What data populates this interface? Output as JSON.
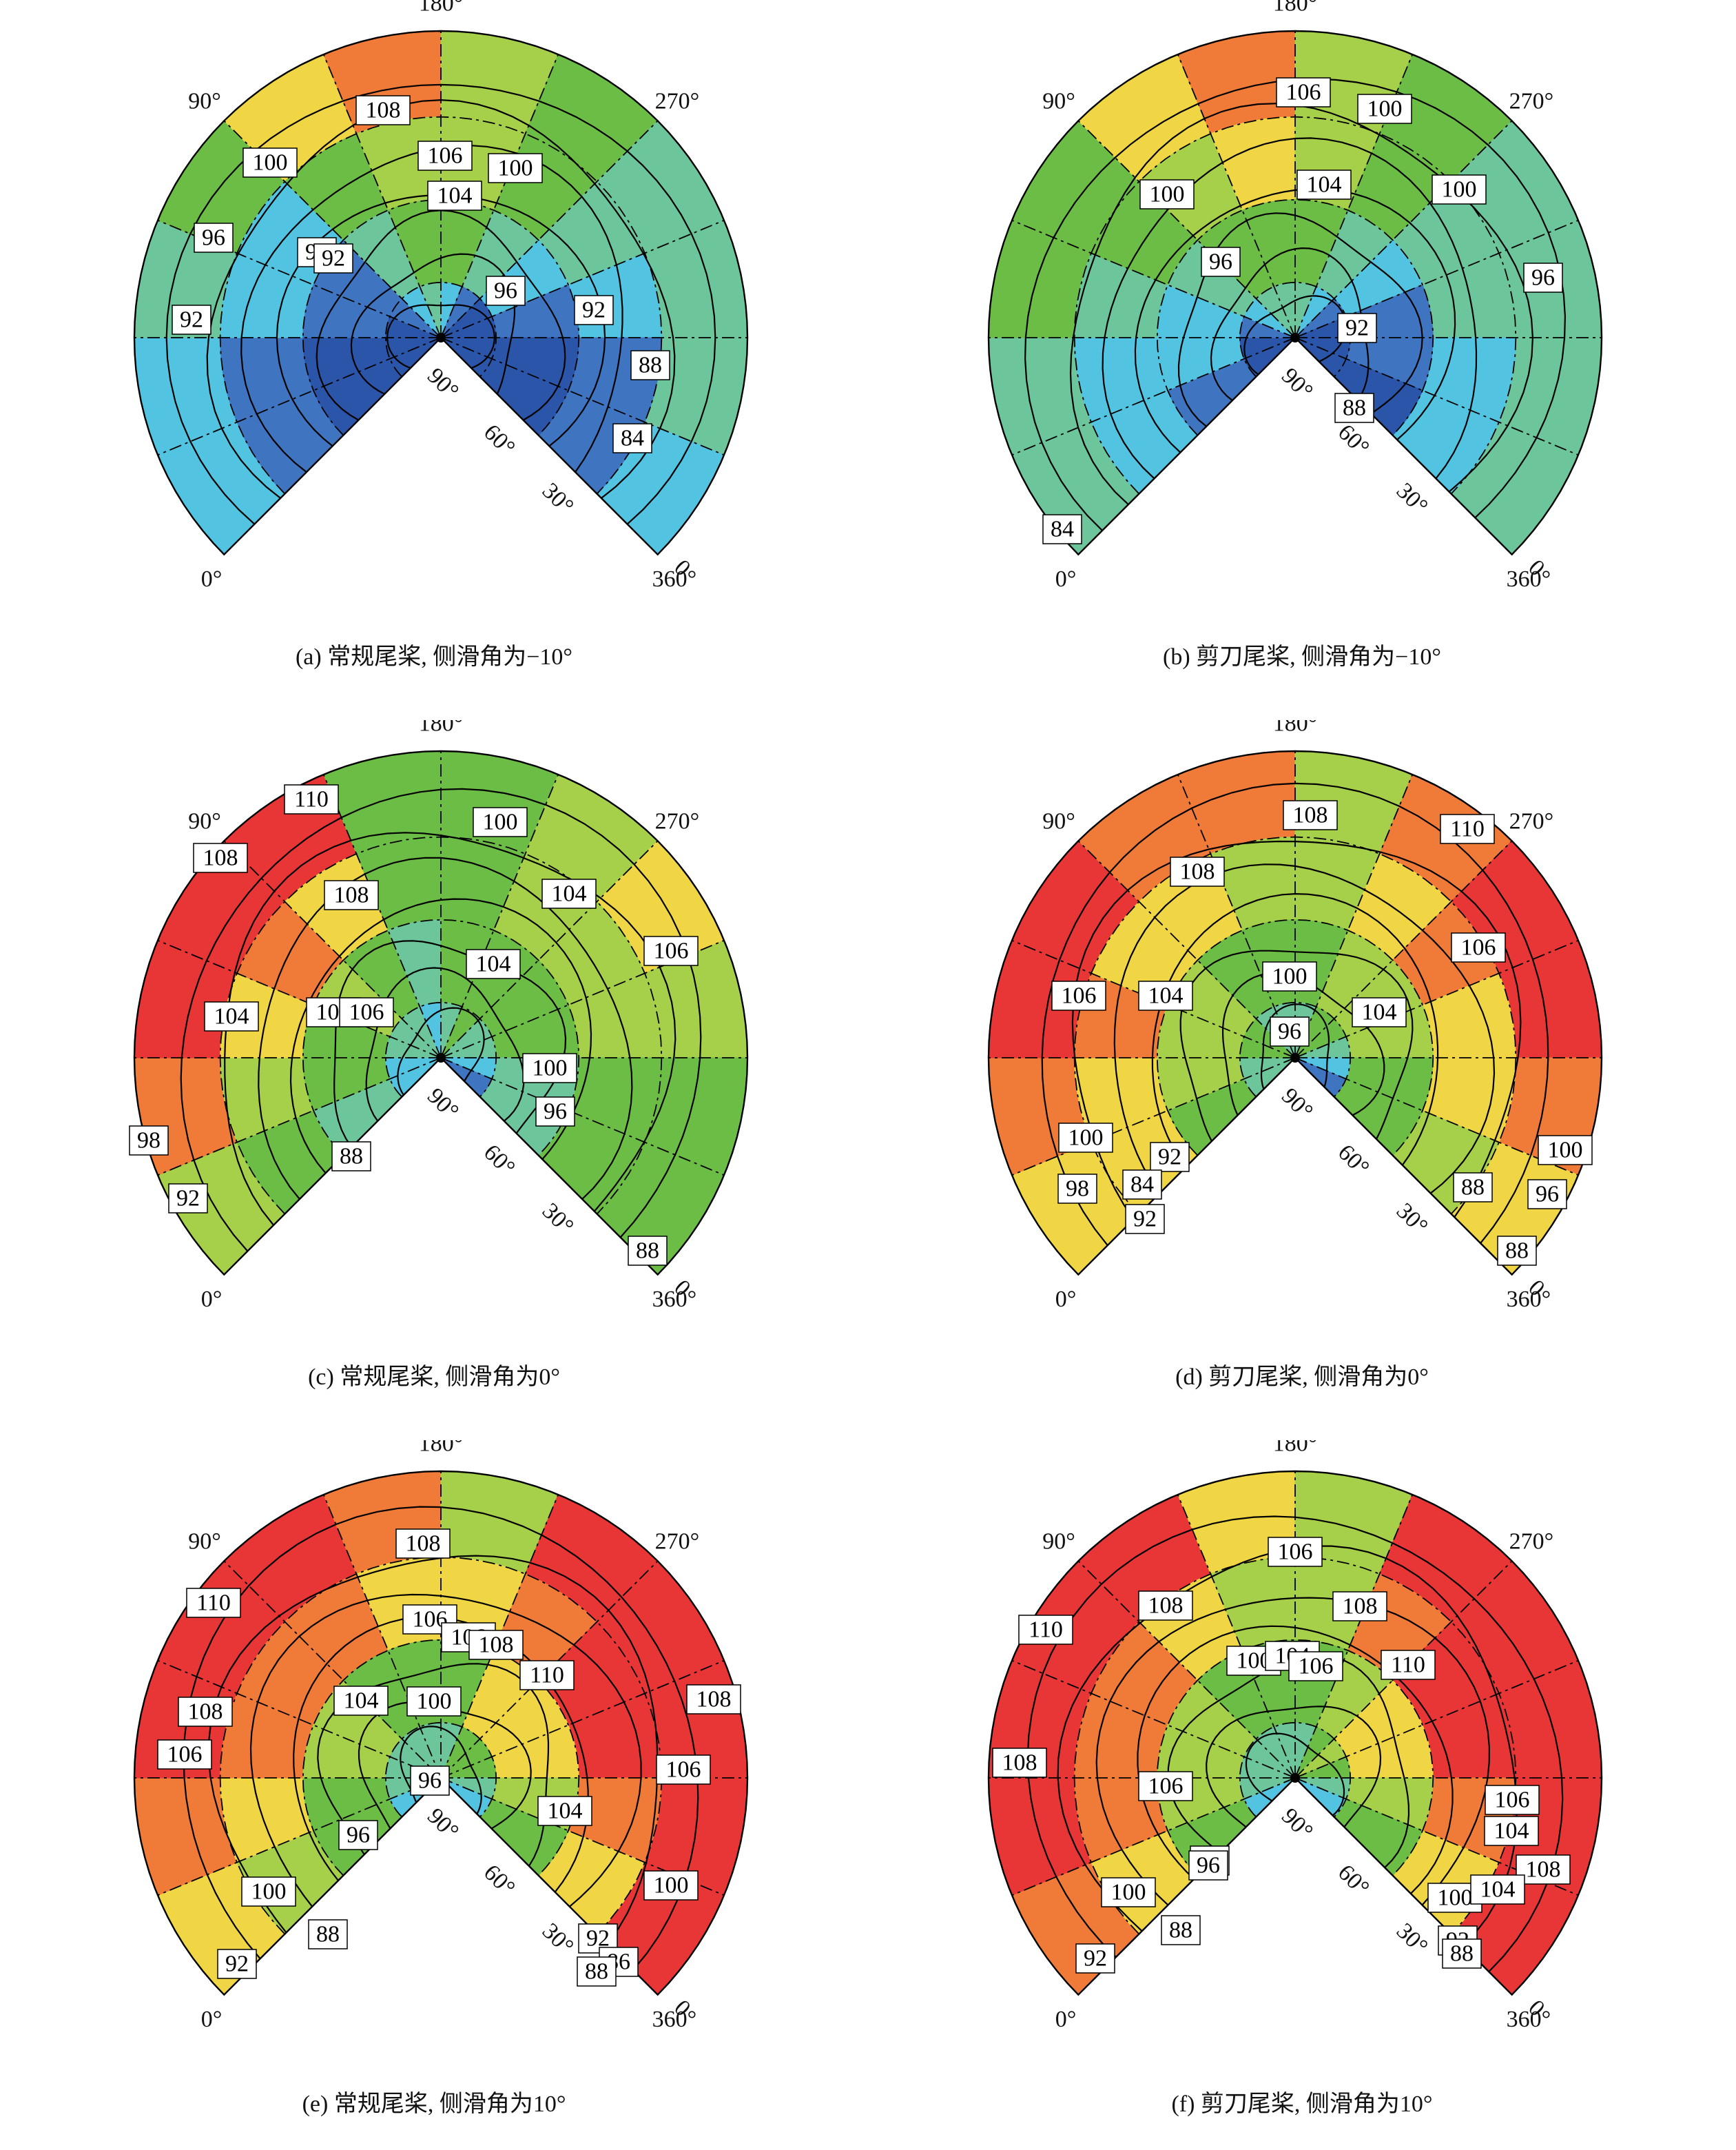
{
  "colorscale": {
    "levels": [
      84,
      88,
      92,
      96,
      100,
      104,
      106,
      108,
      110
    ],
    "colors": [
      "#2b55a8",
      "#3f74c0",
      "#52c3e0",
      "#6cc59b",
      "#6cbd45",
      "#a6d04a",
      "#f0d645",
      "#f07a38",
      "#e83535"
    ]
  },
  "chart_data": [
    {
      "type": "heatmap",
      "caption": "(a) 常规尾桨, 侧滑角为−10°",
      "azimuth_labels": [
        "0°",
        "90°",
        "180°",
        "270°",
        "360°"
      ],
      "elevation_labels": [
        "0",
        "30°",
        "60°",
        "90°"
      ],
      "contour_labels": [
        "108",
        "106",
        "104",
        "100",
        "100",
        "96",
        "96",
        "96",
        "92",
        "92",
        "92",
        "88",
        "84"
      ],
      "rows": [
        [
          92,
          93,
          98,
          101,
          107,
          109,
          104,
          100,
          98,
          97,
          96,
          93
        ],
        [
          89,
          90,
          95,
          93,
          102,
          105,
          104,
          101,
          98,
          94,
          90,
          88
        ],
        [
          86,
          87,
          90,
          90,
          96,
          100,
          100,
          96,
          92,
          88,
          85,
          84
        ],
        [
          84,
          85,
          87,
          88,
          92,
          96,
          94,
          90,
          87,
          85,
          83,
          83
        ]
      ]
    },
    {
      "type": "heatmap",
      "caption": "(b) 剪刀尾桨, 侧滑角为−10°",
      "azimuth_labels": [
        "0°",
        "90°",
        "180°",
        "270°",
        "360°"
      ],
      "elevation_labels": [
        "0",
        "30°",
        "60°",
        "90°"
      ],
      "contour_labels": [
        "106",
        "100",
        "104",
        "100",
        "100",
        "96",
        "96",
        "92",
        "88",
        "84"
      ],
      "rows": [
        [
          96,
          98,
          100,
          102,
          106,
          108,
          104,
          100,
          99,
          98,
          97,
          96
        ],
        [
          93,
          95,
          98,
          100,
          104,
          106,
          104,
          101,
          99,
          96,
          93,
          92
        ],
        [
          90,
          92,
          95,
          97,
          100,
          102,
          100,
          97,
          94,
          90,
          88,
          87
        ],
        [
          84,
          87,
          90,
          93,
          96,
          98,
          96,
          92,
          89,
          86,
          84,
          84
        ]
      ]
    },
    {
      "type": "heatmap",
      "caption": "(c) 常规尾桨, 侧滑角为0°",
      "azimuth_labels": [
        "0°",
        "90°",
        "180°",
        "270°",
        "360°"
      ],
      "elevation_labels": [
        "0",
        "30°",
        "60°",
        "90°"
      ],
      "contour_labels": [
        "110",
        "100",
        "108",
        "108",
        "104",
        "106",
        "104",
        "104",
        "100",
        "106",
        "100",
        "96",
        "98",
        "88",
        "92",
        "88"
      ],
      "rows": [
        [
          104,
          108,
          110,
          111,
          110,
          101,
          100,
          104,
          107,
          105,
          103,
          102
        ],
        [
          102,
          104,
          106,
          108,
          106,
          102,
          101,
          104,
          105,
          104,
          102,
          100
        ],
        [
          98,
          100,
          102,
          104,
          100,
          97,
          100,
          103,
          103,
          101,
          98,
          96
        ],
        [
          92,
          94,
          96,
          98,
          96,
          94,
          98,
          100,
          99,
          96,
          92,
          88
        ]
      ]
    },
    {
      "type": "heatmap",
      "caption": "(d) 剪刀尾桨, 侧滑角为0°",
      "azimuth_labels": [
        "0°",
        "90°",
        "180°",
        "270°",
        "360°"
      ],
      "elevation_labels": [
        "0",
        "30°",
        "60°",
        "90°"
      ],
      "contour_labels": [
        "108",
        "110",
        "108",
        "106",
        "106",
        "104",
        "100",
        "104",
        "96",
        "100",
        "100",
        "92",
        "88",
        "84",
        "98",
        "92",
        "96",
        "88"
      ],
      "rows": [
        [
          107,
          108,
          110,
          111,
          109,
          108,
          104,
          109,
          111,
          110,
          108,
          107
        ],
        [
          106,
          107,
          108,
          107,
          106,
          104,
          104,
          106,
          108,
          107,
          106,
          105
        ],
        [
          102,
          104,
          105,
          104,
          101,
          100,
          101,
          104,
          105,
          104,
          102,
          100
        ],
        [
          96,
          98,
          100,
          100,
          98,
          96,
          98,
          100,
          100,
          98,
          94,
          88
        ]
      ]
    },
    {
      "type": "heatmap",
      "caption": "(e) 常规尾桨, 侧滑角为10°",
      "azimuth_labels": [
        "0°",
        "90°",
        "180°",
        "270°",
        "360°"
      ],
      "elevation_labels": [
        "0",
        "30°",
        "60°",
        "90°"
      ],
      "contour_labels": [
        "108",
        "110",
        "106",
        "106",
        "108",
        "110",
        "108",
        "104",
        "100",
        "108",
        "106",
        "106",
        "96",
        "104",
        "96",
        "100",
        "100",
        "88",
        "92",
        "92",
        "86",
        "88"
      ],
      "rows": [
        [
          106,
          108,
          110,
          111,
          112,
          108,
          104,
          110,
          112,
          112,
          111,
          110
        ],
        [
          104,
          106,
          108,
          109,
          108,
          106,
          106,
          109,
          111,
          110,
          108,
          107
        ],
        [
          100,
          102,
          104,
          104,
          103,
          100,
          102,
          106,
          107,
          106,
          104,
          102
        ],
        [
          94,
          96,
          98,
          99,
          98,
          96,
          98,
          102,
          103,
          101,
          98,
          94
        ]
      ]
    },
    {
      "type": "heatmap",
      "caption": "(f) 剪刀尾桨, 侧滑角为10°",
      "azimuth_labels": [
        "0°",
        "90°",
        "180°",
        "270°",
        "360°"
      ],
      "elevation_labels": [
        "0",
        "30°",
        "60°",
        "90°"
      ],
      "contour_labels": [
        "106",
        "108",
        "110",
        "108",
        "100",
        "104",
        "106",
        "110",
        "108",
        "106",
        "106",
        "104",
        "96",
        "108",
        "100",
        "96",
        "100",
        "104",
        "88",
        "92",
        "92",
        "88"
      ],
      "rows": [
        [
          108,
          110,
          111,
          112,
          110,
          106,
          105,
          110,
          112,
          112,
          111,
          110
        ],
        [
          106,
          108,
          109,
          108,
          107,
          104,
          104,
          108,
          110,
          110,
          108,
          107
        ],
        [
          102,
          104,
          104,
          104,
          102,
          100,
          101,
          105,
          107,
          106,
          104,
          102
        ],
        [
          94,
          96,
          98,
          98,
          97,
          96,
          98,
          102,
          104,
          102,
          98,
          94
        ]
      ]
    }
  ]
}
